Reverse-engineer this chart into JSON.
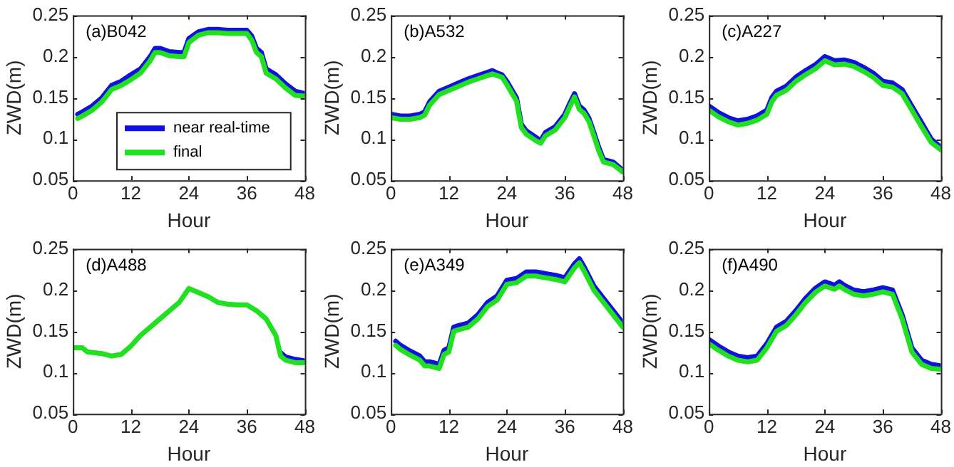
{
  "chart_data": [
    {
      "type": "line",
      "title": "(a)B042",
      "xlabel": "Hour",
      "ylabel": "ZWD(m)",
      "xlim": [
        0,
        48
      ],
      "xticks": [
        0,
        12,
        24,
        36,
        48
      ],
      "ylim": [
        0.05,
        0.25
      ],
      "yticks": [
        0.05,
        0.1,
        0.15,
        0.2,
        0.25
      ],
      "grid": false,
      "legend": "bottom",
      "marker": "none",
      "line_style": "solid",
      "x": [
        1,
        2,
        4,
        6,
        8,
        10,
        12,
        14,
        16,
        17,
        18,
        20,
        22,
        23,
        24,
        26,
        28,
        30,
        32,
        34,
        36,
        37,
        38,
        39,
        40,
        42,
        44,
        46,
        48
      ],
      "series": [
        {
          "name": "near real-time",
          "color": "#1010e0",
          "values": [
            0.13,
            0.133,
            0.14,
            0.15,
            0.165,
            0.17,
            0.178,
            0.185,
            0.2,
            0.21,
            0.21,
            0.206,
            0.205,
            0.205,
            0.222,
            0.23,
            0.233,
            0.233,
            0.232,
            0.232,
            0.232,
            0.225,
            0.21,
            0.205,
            0.185,
            0.178,
            0.167,
            0.158,
            0.155
          ]
        },
        {
          "name": "final",
          "color": "#20e020",
          "values": [
            0.125,
            0.128,
            0.135,
            0.145,
            0.16,
            0.165,
            0.172,
            0.18,
            0.195,
            0.205,
            0.205,
            0.201,
            0.2,
            0.2,
            0.217,
            0.226,
            0.229,
            0.229,
            0.228,
            0.228,
            0.228,
            0.22,
            0.205,
            0.2,
            0.18,
            0.173,
            0.162,
            0.153,
            0.152
          ]
        }
      ]
    },
    {
      "type": "line",
      "title": "(b)A532",
      "xlabel": "Hour",
      "ylabel": "ZWD(m)",
      "xlim": [
        0,
        48
      ],
      "xticks": [
        0,
        12,
        24,
        36,
        48
      ],
      "ylim": [
        0.05,
        0.25
      ],
      "yticks": [
        0.05,
        0.1,
        0.15,
        0.2,
        0.25
      ],
      "grid": false,
      "marker": "none",
      "line_style": "solid",
      "x": [
        0,
        2,
        4,
        6,
        7,
        8,
        10,
        12,
        14,
        16,
        18,
        20,
        21,
        22,
        23,
        24,
        26,
        27,
        28,
        30,
        31,
        32,
        34,
        36,
        37,
        38,
        39,
        40,
        41,
        42,
        43,
        44,
        46,
        48
      ],
      "series": [
        {
          "color": "#1010e0",
          "values": [
            0.13,
            0.128,
            0.128,
            0.13,
            0.133,
            0.145,
            0.158,
            0.163,
            0.168,
            0.173,
            0.177,
            0.181,
            0.183,
            0.18,
            0.178,
            0.17,
            0.15,
            0.118,
            0.11,
            0.102,
            0.098,
            0.108,
            0.115,
            0.13,
            0.143,
            0.155,
            0.14,
            0.135,
            0.125,
            0.108,
            0.09,
            0.075,
            0.072,
            0.062
          ]
        },
        {
          "color": "#20e020",
          "values": [
            0.126,
            0.124,
            0.124,
            0.126,
            0.129,
            0.141,
            0.154,
            0.159,
            0.164,
            0.169,
            0.173,
            0.177,
            0.179,
            0.177,
            0.175,
            0.166,
            0.146,
            0.114,
            0.106,
            0.098,
            0.095,
            0.104,
            0.111,
            0.126,
            0.139,
            0.151,
            0.136,
            0.131,
            0.121,
            0.104,
            0.086,
            0.072,
            0.069,
            0.06
          ]
        }
      ]
    },
    {
      "type": "line",
      "title": "(c)A227",
      "xlabel": "Hour",
      "ylabel": "ZWD(m)",
      "xlim": [
        0,
        48
      ],
      "xticks": [
        0,
        12,
        24,
        36,
        48
      ],
      "ylim": [
        0.05,
        0.25
      ],
      "yticks": [
        0.05,
        0.1,
        0.15,
        0.2,
        0.25
      ],
      "grid": false,
      "marker": "none",
      "line_style": "solid",
      "x": [
        0,
        2,
        4,
        6,
        8,
        10,
        12,
        13,
        14,
        16,
        18,
        20,
        22,
        23,
        24,
        26,
        28,
        30,
        32,
        34,
        36,
        38,
        40,
        42,
        44,
        46,
        48
      ],
      "series": [
        {
          "color": "#1010e0",
          "values": [
            0.14,
            0.132,
            0.126,
            0.122,
            0.124,
            0.128,
            0.135,
            0.15,
            0.158,
            0.164,
            0.175,
            0.183,
            0.19,
            0.195,
            0.2,
            0.195,
            0.196,
            0.193,
            0.187,
            0.18,
            0.17,
            0.168,
            0.16,
            0.14,
            0.12,
            0.1,
            0.09
          ]
        },
        {
          "color": "#20e020",
          "values": [
            0.135,
            0.127,
            0.121,
            0.117,
            0.119,
            0.123,
            0.13,
            0.145,
            0.153,
            0.159,
            0.17,
            0.178,
            0.185,
            0.19,
            0.195,
            0.19,
            0.191,
            0.188,
            0.182,
            0.175,
            0.165,
            0.163,
            0.155,
            0.135,
            0.115,
            0.096,
            0.087
          ]
        }
      ]
    },
    {
      "type": "line",
      "title": "(d)A488",
      "xlabel": "Hour",
      "ylabel": "ZWD(m)",
      "xlim": [
        0,
        48
      ],
      "xticks": [
        0,
        12,
        24,
        36,
        48
      ],
      "ylim": [
        0.05,
        0.25
      ],
      "yticks": [
        0.05,
        0.1,
        0.15,
        0.2,
        0.25
      ],
      "grid": false,
      "marker": "none",
      "line_style": "solid",
      "x": [
        0,
        2,
        3,
        6,
        8,
        10,
        12,
        14,
        16,
        18,
        20,
        22,
        24,
        26,
        28,
        30,
        32,
        34,
        36,
        38,
        40,
        42,
        43,
        44,
        46,
        48
      ],
      "series": [
        {
          "color": "#1010e0",
          "values": [
            null,
            null,
            null,
            null,
            null,
            null,
            null,
            null,
            null,
            null,
            null,
            null,
            null,
            null,
            null,
            null,
            null,
            null,
            null,
            null,
            null,
            null,
            0.124,
            0.119,
            0.116,
            0.114
          ]
        },
        {
          "color": "#20e020",
          "values": [
            0.13,
            0.13,
            0.125,
            0.123,
            0.12,
            0.122,
            0.132,
            0.145,
            0.155,
            0.165,
            0.175,
            0.185,
            0.202,
            0.197,
            0.192,
            0.185,
            0.183,
            0.182,
            0.182,
            0.175,
            0.165,
            0.145,
            0.12,
            0.115,
            0.112,
            0.112
          ]
        }
      ]
    },
    {
      "type": "line",
      "title": "(e)A349",
      "xlabel": "Hour",
      "ylabel": "ZWD(m)",
      "xlim": [
        0,
        48
      ],
      "xticks": [
        0,
        12,
        24,
        36,
        48
      ],
      "ylim": [
        0.05,
        0.25
      ],
      "yticks": [
        0.05,
        0.1,
        0.15,
        0.2,
        0.25
      ],
      "grid": false,
      "marker": "none",
      "line_style": "solid",
      "x": [
        1,
        2,
        4,
        6,
        7,
        8,
        10,
        11,
        12,
        13,
        14,
        16,
        18,
        20,
        22,
        24,
        26,
        28,
        30,
        32,
        34,
        36,
        38,
        39,
        40,
        42,
        44,
        46,
        48
      ],
      "series": [
        {
          "color": "#1010e0",
          "values": [
            0.138,
            0.133,
            0.126,
            0.12,
            0.113,
            0.113,
            0.11,
            0.127,
            0.13,
            0.155,
            0.157,
            0.16,
            0.17,
            0.185,
            0.193,
            0.212,
            0.214,
            0.222,
            0.222,
            0.22,
            0.218,
            0.215,
            0.232,
            0.238,
            0.228,
            0.205,
            0.19,
            0.175,
            0.16
          ]
        },
        {
          "color": "#20e020",
          "values": [
            0.133,
            0.128,
            0.121,
            0.115,
            0.108,
            0.108,
            0.105,
            0.122,
            0.125,
            0.15,
            0.152,
            0.155,
            0.165,
            0.18,
            0.188,
            0.207,
            0.209,
            0.217,
            0.217,
            0.215,
            0.213,
            0.21,
            0.227,
            0.233,
            0.223,
            0.2,
            0.185,
            0.17,
            0.155
          ]
        }
      ]
    },
    {
      "type": "line",
      "title": "(f)A490",
      "xlabel": "Hour",
      "ylabel": "ZWD(m)",
      "xlim": [
        0,
        48
      ],
      "xticks": [
        0,
        12,
        24,
        36,
        48
      ],
      "ylim": [
        0.05,
        0.25
      ],
      "yticks": [
        0.05,
        0.1,
        0.15,
        0.2,
        0.25
      ],
      "grid": false,
      "marker": "none",
      "line_style": "solid",
      "x": [
        0,
        2,
        4,
        6,
        8,
        10,
        12,
        14,
        16,
        18,
        20,
        22,
        24,
        26,
        27,
        28,
        30,
        32,
        34,
        36,
        38,
        40,
        42,
        44,
        46,
        48
      ],
      "series": [
        {
          "color": "#1010e0",
          "values": [
            0.14,
            0.132,
            0.125,
            0.12,
            0.118,
            0.12,
            0.135,
            0.155,
            0.162,
            0.175,
            0.19,
            0.202,
            0.21,
            0.206,
            0.21,
            0.206,
            0.2,
            0.198,
            0.2,
            0.203,
            0.2,
            0.17,
            0.13,
            0.115,
            0.11,
            0.108
          ]
        },
        {
          "color": "#20e020",
          "values": [
            0.135,
            0.127,
            0.12,
            0.115,
            0.113,
            0.115,
            0.13,
            0.15,
            0.157,
            0.17,
            0.185,
            0.197,
            0.205,
            0.201,
            0.205,
            0.201,
            0.195,
            0.193,
            0.195,
            0.198,
            0.195,
            0.165,
            0.125,
            0.11,
            0.105,
            0.104
          ]
        }
      ]
    }
  ]
}
